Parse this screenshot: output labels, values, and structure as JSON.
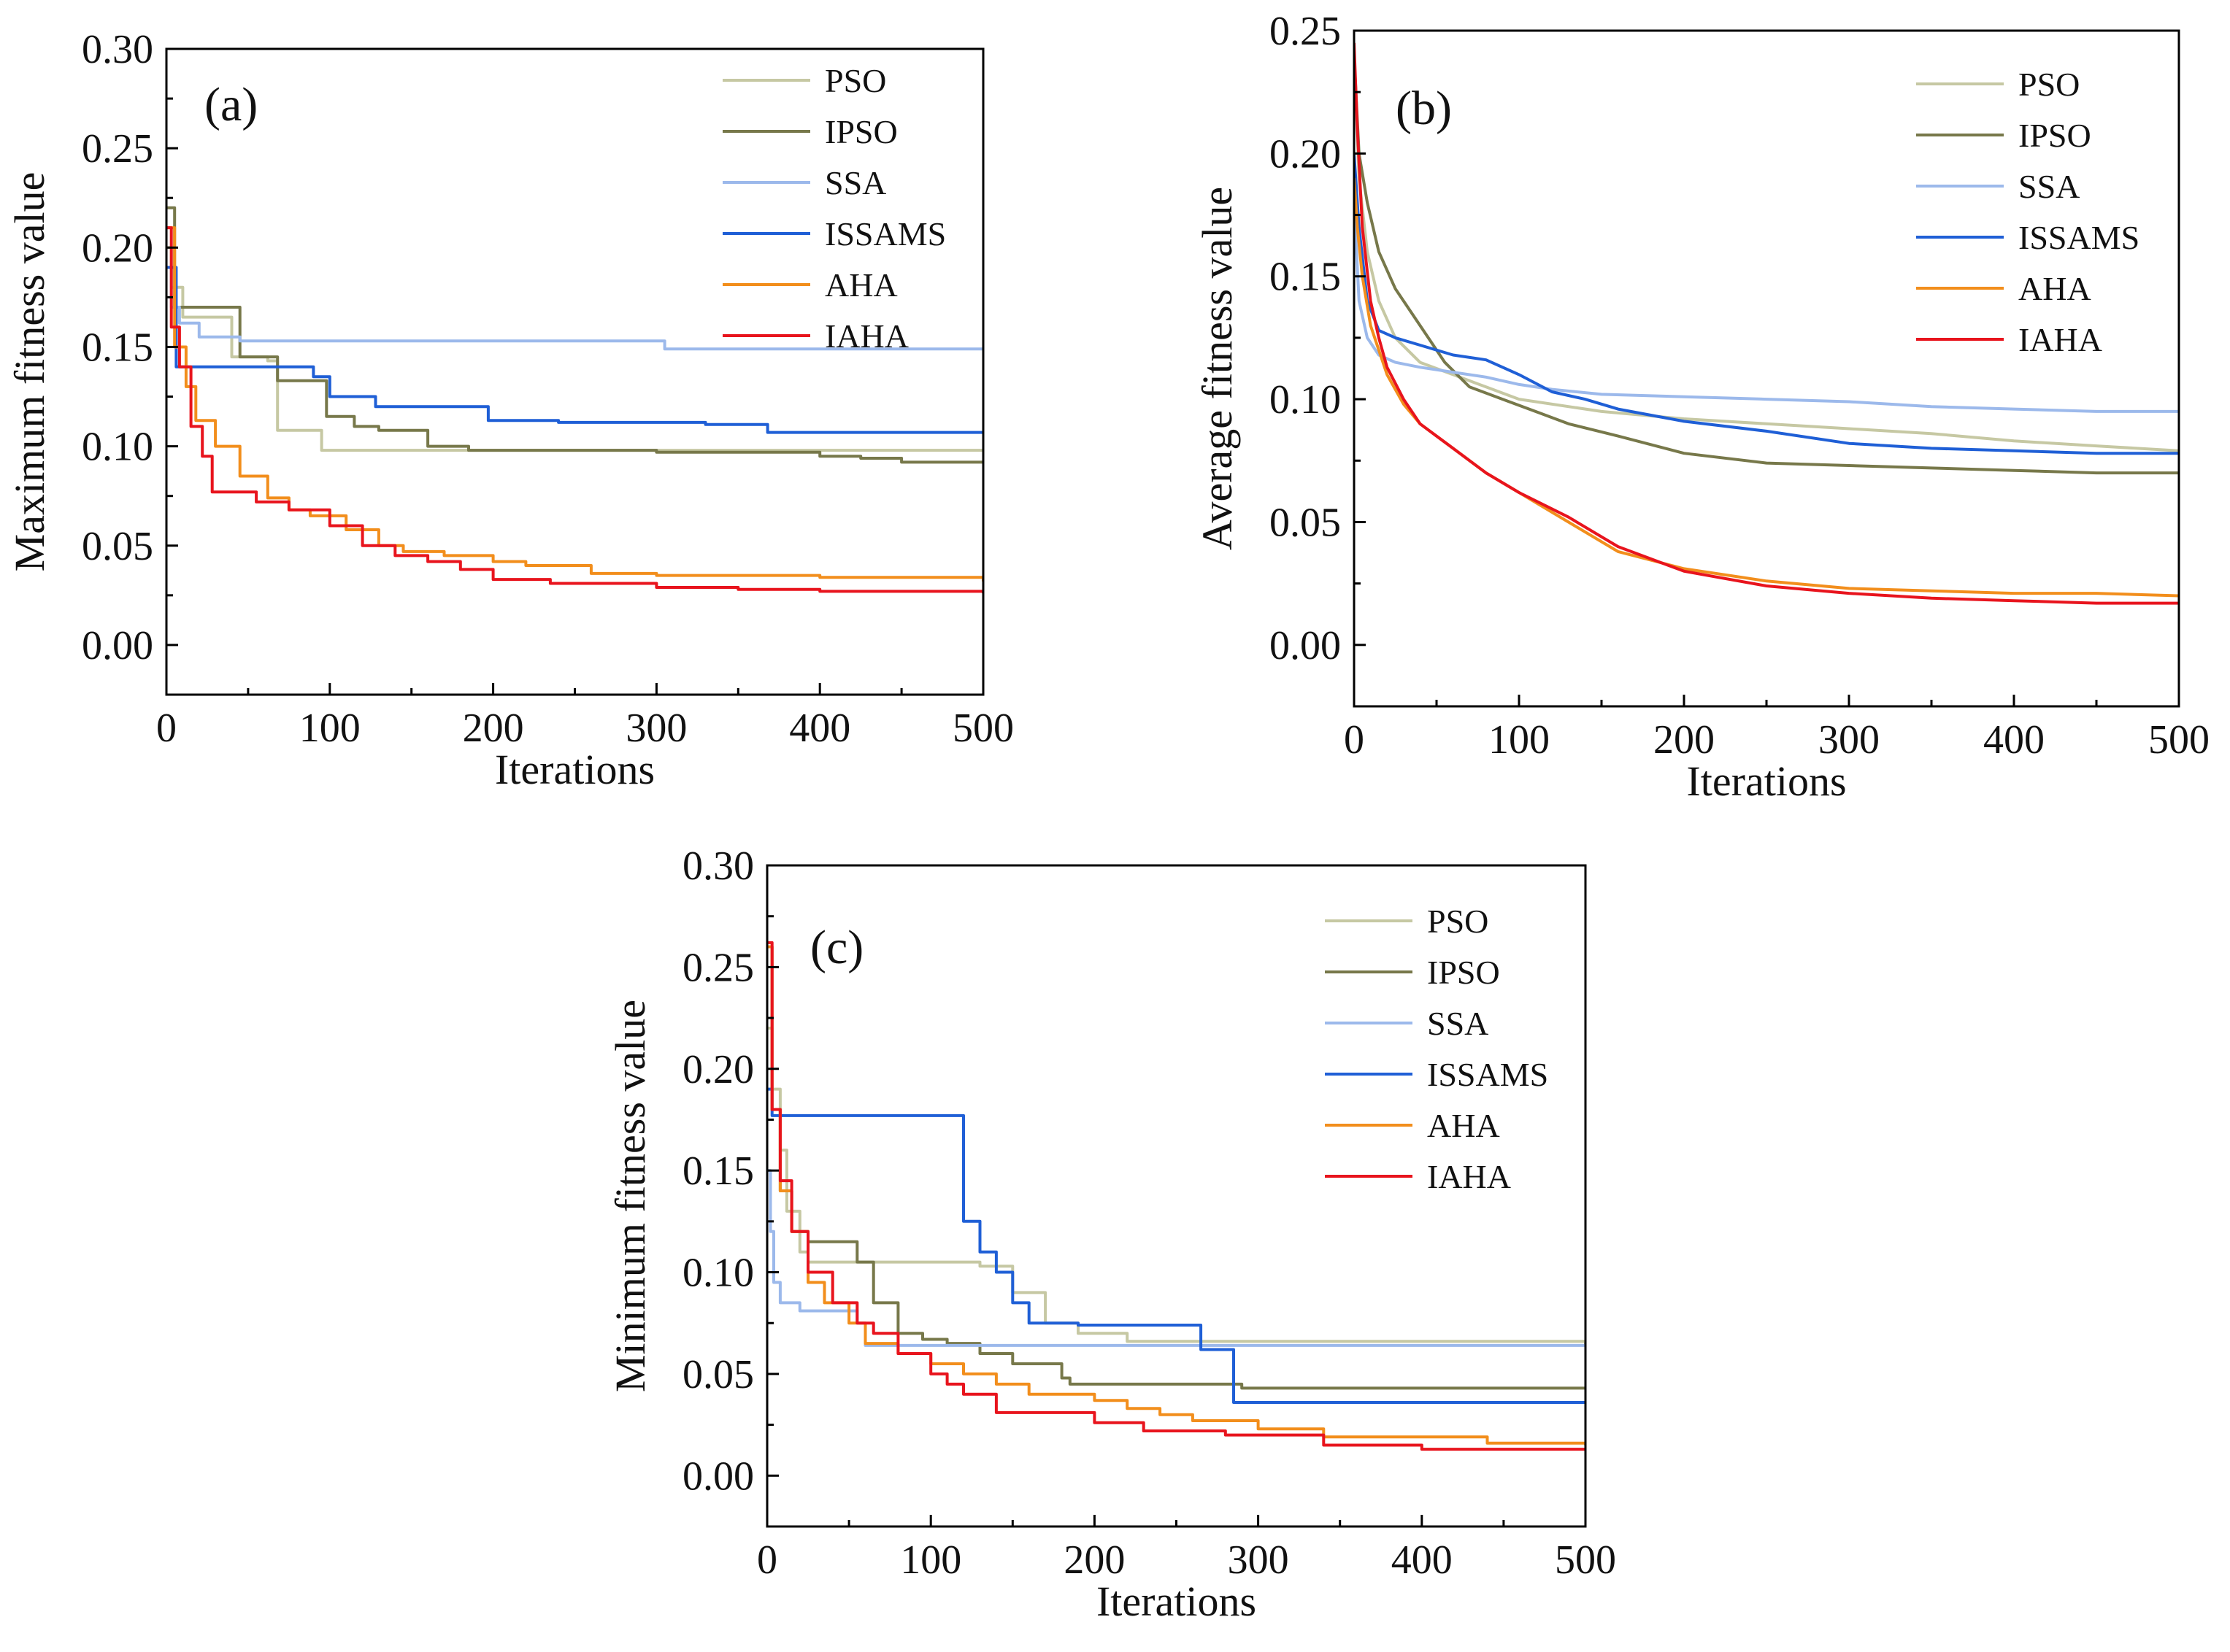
{
  "chart_data": [
    {
      "id": "a",
      "type": "line",
      "panel_label": "(a)",
      "xlabel": "Iterations",
      "ylabel": "Maximum fitness value",
      "xlim": [
        0,
        500
      ],
      "ylim": [
        -0.025,
        0.3
      ],
      "xticks": [
        0,
        100,
        200,
        300,
        400,
        500
      ],
      "xtick_labels": [
        "0",
        "100",
        "200",
        "300",
        "400",
        "500"
      ],
      "yticks": [
        0.0,
        0.05,
        0.1,
        0.15,
        0.2,
        0.25,
        0.3
      ],
      "ytick_labels": [
        "0.00",
        "0.05",
        "0.10",
        "0.15",
        "0.20",
        "0.25",
        "0.30"
      ],
      "legend_position": "top-right",
      "series": [
        {
          "name": "PSO",
          "color": "#c6c8a3",
          "step": true,
          "x": [
            0,
            3,
            10,
            40,
            62,
            68,
            95,
            500
          ],
          "y": [
            0.2,
            0.18,
            0.165,
            0.145,
            0.143,
            0.108,
            0.098,
            0.098
          ]
        },
        {
          "name": "IPSO",
          "color": "#77784a",
          "step": true,
          "x": [
            0,
            5,
            45,
            68,
            98,
            115,
            130,
            160,
            185,
            300,
            400,
            425,
            450,
            500
          ],
          "y": [
            0.22,
            0.17,
            0.145,
            0.133,
            0.115,
            0.11,
            0.108,
            0.1,
            0.098,
            0.097,
            0.095,
            0.094,
            0.092,
            0.092
          ]
        },
        {
          "name": "SSA",
          "color": "#9cb9eb",
          "step": true,
          "x": [
            0,
            3,
            8,
            20,
            45,
            300,
            305,
            500
          ],
          "y": [
            0.19,
            0.17,
            0.162,
            0.155,
            0.153,
            0.153,
            0.149,
            0.149
          ]
        },
        {
          "name": "ISSAMS",
          "color": "#1f5fd6",
          "step": true,
          "x": [
            0,
            6,
            90,
            100,
            128,
            197,
            240,
            330,
            368,
            500
          ],
          "y": [
            0.19,
            0.14,
            0.135,
            0.125,
            0.12,
            0.113,
            0.112,
            0.111,
            0.107,
            0.107
          ]
        },
        {
          "name": "AHA",
          "color": "#f28e1c",
          "step": true,
          "x": [
            0,
            5,
            12,
            18,
            30,
            45,
            62,
            75,
            88,
            110,
            130,
            145,
            170,
            200,
            220,
            260,
            300,
            400,
            500
          ],
          "y": [
            0.21,
            0.15,
            0.13,
            0.113,
            0.1,
            0.085,
            0.074,
            0.068,
            0.065,
            0.058,
            0.05,
            0.047,
            0.045,
            0.042,
            0.04,
            0.036,
            0.035,
            0.034,
            0.032
          ]
        },
        {
          "name": "IAHA",
          "color": "#e8141d",
          "step": true,
          "x": [
            0,
            3,
            8,
            15,
            22,
            28,
            55,
            75,
            100,
            120,
            140,
            160,
            180,
            200,
            235,
            300,
            350,
            400,
            500
          ],
          "y": [
            0.21,
            0.16,
            0.14,
            0.11,
            0.095,
            0.077,
            0.072,
            0.068,
            0.06,
            0.05,
            0.045,
            0.042,
            0.038,
            0.033,
            0.031,
            0.029,
            0.028,
            0.027,
            0.026
          ]
        }
      ]
    },
    {
      "id": "b",
      "type": "line",
      "panel_label": "(b)",
      "xlabel": "Iterations",
      "ylabel": "Average fitness value",
      "xlim": [
        0,
        500
      ],
      "ylim": [
        -0.025,
        0.25
      ],
      "xticks": [
        0,
        100,
        200,
        300,
        400,
        500
      ],
      "xtick_labels": [
        "0",
        "100",
        "200",
        "300",
        "400",
        "500"
      ],
      "yticks": [
        0.0,
        0.05,
        0.1,
        0.15,
        0.2,
        0.25
      ],
      "ytick_labels": [
        "0.00",
        "0.05",
        "0.10",
        "0.15",
        "0.20",
        "0.25"
      ],
      "legend_position": "top-right",
      "series": [
        {
          "name": "PSO",
          "color": "#c6c8a3",
          "step": false,
          "x": [
            0,
            3,
            8,
            15,
            25,
            40,
            60,
            80,
            100,
            150,
            200,
            250,
            300,
            350,
            400,
            450,
            500
          ],
          "y": [
            0.24,
            0.19,
            0.16,
            0.14,
            0.125,
            0.115,
            0.11,
            0.105,
            0.1,
            0.095,
            0.092,
            0.09,
            0.088,
            0.086,
            0.083,
            0.081,
            0.079
          ]
        },
        {
          "name": "IPSO",
          "color": "#77784a",
          "step": false,
          "x": [
            0,
            3,
            8,
            15,
            25,
            35,
            45,
            55,
            70,
            90,
            110,
            130,
            160,
            200,
            250,
            300,
            350,
            400,
            450,
            500
          ],
          "y": [
            0.24,
            0.2,
            0.18,
            0.16,
            0.145,
            0.135,
            0.125,
            0.115,
            0.105,
            0.1,
            0.095,
            0.09,
            0.085,
            0.078,
            0.074,
            0.073,
            0.072,
            0.071,
            0.07,
            0.07
          ]
        },
        {
          "name": "SSA",
          "color": "#9cb9eb",
          "step": false,
          "x": [
            0,
            3,
            8,
            15,
            25,
            40,
            60,
            80,
            100,
            120,
            150,
            200,
            250,
            300,
            350,
            400,
            450,
            500
          ],
          "y": [
            0.18,
            0.14,
            0.125,
            0.118,
            0.115,
            0.113,
            0.111,
            0.109,
            0.106,
            0.104,
            0.102,
            0.101,
            0.1,
            0.099,
            0.097,
            0.096,
            0.095,
            0.095
          ]
        },
        {
          "name": "ISSAMS",
          "color": "#1f5fd6",
          "step": false,
          "x": [
            0,
            3,
            8,
            15,
            25,
            40,
            60,
            80,
            100,
            120,
            140,
            160,
            200,
            250,
            300,
            350,
            400,
            450,
            500
          ],
          "y": [
            0.2,
            0.17,
            0.14,
            0.128,
            0.125,
            0.122,
            0.118,
            0.116,
            0.11,
            0.103,
            0.1,
            0.096,
            0.091,
            0.087,
            0.082,
            0.08,
            0.079,
            0.078,
            0.078
          ]
        },
        {
          "name": "AHA",
          "color": "#f28e1c",
          "step": false,
          "x": [
            0,
            2,
            5,
            10,
            15,
            20,
            30,
            40,
            50,
            60,
            80,
            100,
            130,
            160,
            200,
            250,
            300,
            350,
            400,
            450,
            500
          ],
          "y": [
            0.19,
            0.17,
            0.15,
            0.13,
            0.12,
            0.11,
            0.098,
            0.09,
            0.085,
            0.08,
            0.07,
            0.062,
            0.05,
            0.038,
            0.031,
            0.026,
            0.023,
            0.022,
            0.021,
            0.021,
            0.02
          ]
        },
        {
          "name": "IAHA",
          "color": "#e8141d",
          "step": false,
          "x": [
            0,
            2,
            5,
            10,
            15,
            20,
            30,
            40,
            50,
            60,
            80,
            100,
            130,
            160,
            200,
            250,
            300,
            350,
            400,
            450,
            500
          ],
          "y": [
            0.245,
            0.21,
            0.17,
            0.14,
            0.125,
            0.113,
            0.1,
            0.09,
            0.085,
            0.08,
            0.07,
            0.062,
            0.052,
            0.04,
            0.03,
            0.024,
            0.021,
            0.019,
            0.018,
            0.017,
            0.017
          ]
        }
      ]
    },
    {
      "id": "c",
      "type": "line",
      "panel_label": "(c)",
      "xlabel": "Iterations",
      "ylabel": "Minimum fitness value",
      "xlim": [
        0,
        500
      ],
      "ylim": [
        -0.025,
        0.3
      ],
      "xticks": [
        0,
        100,
        200,
        300,
        400,
        500
      ],
      "xtick_labels": [
        "0",
        "100",
        "200",
        "300",
        "400",
        "500"
      ],
      "yticks": [
        0.0,
        0.05,
        0.1,
        0.15,
        0.2,
        0.25,
        0.3
      ],
      "ytick_labels": [
        "0.00",
        "0.05",
        "0.10",
        "0.15",
        "0.20",
        "0.25",
        "0.30"
      ],
      "legend_position": "top-right",
      "series": [
        {
          "name": "PSO",
          "color": "#c6c8a3",
          "step": true,
          "x": [
            0,
            3,
            8,
            12,
            20,
            25,
            130,
            150,
            170,
            190,
            220,
            500
          ],
          "y": [
            0.22,
            0.19,
            0.16,
            0.13,
            0.11,
            0.105,
            0.103,
            0.09,
            0.075,
            0.07,
            0.066,
            0.064
          ]
        },
        {
          "name": "IPSO",
          "color": "#77784a",
          "step": true,
          "x": [
            0,
            3,
            8,
            15,
            25,
            55,
            65,
            80,
            95,
            110,
            130,
            150,
            180,
            185,
            290,
            500
          ],
          "y": [
            0.26,
            0.18,
            0.14,
            0.12,
            0.115,
            0.105,
            0.085,
            0.07,
            0.067,
            0.065,
            0.06,
            0.055,
            0.048,
            0.045,
            0.043,
            0.043
          ]
        },
        {
          "name": "SSA",
          "color": "#9cb9eb",
          "step": true,
          "x": [
            0,
            2,
            4,
            8,
            20,
            55,
            60,
            500
          ],
          "y": [
            0.15,
            0.12,
            0.095,
            0.085,
            0.081,
            0.075,
            0.064,
            0.064
          ]
        },
        {
          "name": "ISSAMS",
          "color": "#1f5fd6",
          "step": true,
          "x": [
            0,
            3,
            115,
            120,
            130,
            140,
            150,
            160,
            190,
            265,
            285,
            500
          ],
          "y": [
            0.19,
            0.177,
            0.177,
            0.125,
            0.11,
            0.1,
            0.085,
            0.075,
            0.074,
            0.062,
            0.036,
            0.036
          ]
        },
        {
          "name": "AHA",
          "color": "#f28e1c",
          "step": true,
          "x": [
            0,
            3,
            8,
            15,
            25,
            35,
            50,
            60,
            80,
            100,
            120,
            140,
            160,
            200,
            220,
            240,
            260,
            300,
            340,
            440,
            500
          ],
          "y": [
            0.26,
            0.18,
            0.14,
            0.12,
            0.095,
            0.085,
            0.075,
            0.065,
            0.06,
            0.055,
            0.05,
            0.045,
            0.04,
            0.037,
            0.033,
            0.03,
            0.027,
            0.023,
            0.019,
            0.016,
            0.015
          ]
        },
        {
          "name": "IAHA",
          "color": "#e8141d",
          "step": true,
          "x": [
            0,
            3,
            8,
            15,
            25,
            40,
            55,
            65,
            80,
            100,
            110,
            120,
            140,
            180,
            200,
            230,
            280,
            340,
            400,
            500
          ],
          "y": [
            0.262,
            0.18,
            0.145,
            0.12,
            0.1,
            0.085,
            0.075,
            0.07,
            0.06,
            0.05,
            0.045,
            0.04,
            0.031,
            0.031,
            0.026,
            0.022,
            0.02,
            0.015,
            0.013,
            0.013
          ]
        }
      ]
    }
  ]
}
